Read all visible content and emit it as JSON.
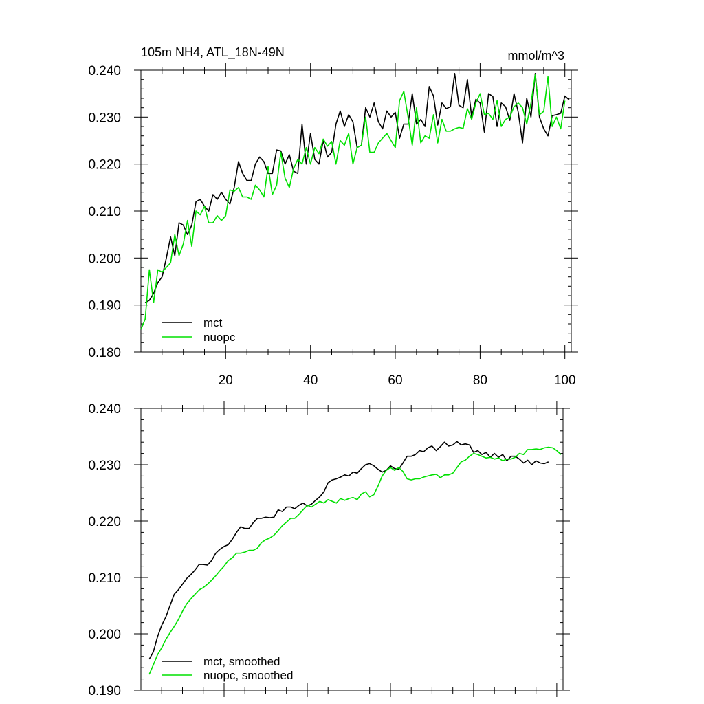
{
  "colors": {
    "mct": "#000000",
    "nuopc": "#00e000"
  },
  "chart_data": [
    {
      "type": "line",
      "title": "105m NH4, ATL_18N-49N",
      "units": "mmol/m^3",
      "xlim": [
        0,
        101.5
      ],
      "ylim": [
        0.18,
        0.24
      ],
      "xticks": [
        20,
        40,
        60,
        80,
        100
      ],
      "xtick_labels": [
        "20",
        "40",
        "60",
        "80",
        "100"
      ],
      "yticks": [
        0.18,
        0.19,
        0.2,
        0.21,
        0.22,
        0.23,
        0.24
      ],
      "ytick_labels": [
        "0.180",
        "0.190",
        "0.200",
        "0.210",
        "0.220",
        "0.230",
        "0.240"
      ],
      "legend": [
        "mct",
        "nuopc"
      ],
      "legend_position": "bottom-left",
      "series": [
        {
          "name": "mct",
          "x_start": 1,
          "values": [
            0.1905,
            0.191,
            0.1925,
            0.1948,
            0.196,
            0.2,
            0.2045,
            0.2005,
            0.2075,
            0.207,
            0.205,
            0.207,
            0.212,
            0.2125,
            0.211,
            0.21,
            0.2135,
            0.2125,
            0.214,
            0.2125,
            0.2115,
            0.215,
            0.2205,
            0.218,
            0.2165,
            0.2165,
            0.22,
            0.2215,
            0.2205,
            0.218,
            0.218,
            0.223,
            0.2228,
            0.22,
            0.222,
            0.2185,
            0.218,
            0.2285,
            0.22,
            0.2265,
            0.221,
            0.22,
            0.225,
            0.2215,
            0.2225,
            0.2285,
            0.2313,
            0.228,
            0.2305,
            0.229,
            0.2235,
            0.224,
            0.232,
            0.23,
            0.233,
            0.229,
            0.2275,
            0.2313,
            0.23,
            0.231,
            0.2255,
            0.2285,
            0.2285,
            0.235,
            0.2285,
            0.2295,
            0.228,
            0.2365,
            0.2345,
            0.2283,
            0.233,
            0.2318,
            0.2322,
            0.2393,
            0.2325,
            0.232,
            0.238,
            0.23,
            0.2338,
            0.233,
            0.2268,
            0.235,
            0.2344,
            0.228,
            0.233,
            0.2322,
            0.2293,
            0.235,
            0.231,
            0.2245,
            0.234,
            0.23,
            0.2393,
            0.23,
            0.2275,
            0.226,
            0.2303,
            0.2305,
            0.2308,
            0.2345,
            0.2337
          ]
        },
        {
          "name": "nuopc",
          "x_start": 0,
          "values": [
            0.1848,
            0.187,
            0.1975,
            0.1905,
            0.1975,
            0.197,
            0.198,
            0.199,
            0.205,
            0.2005,
            0.203,
            0.208,
            0.2025,
            0.21,
            0.2092,
            0.211,
            0.2075,
            0.2075,
            0.209,
            0.208,
            0.209,
            0.2145,
            0.2142,
            0.215,
            0.213,
            0.213,
            0.2125,
            0.2155,
            0.2145,
            0.213,
            0.2195,
            0.2135,
            0.2155,
            0.2225,
            0.217,
            0.215,
            0.219,
            0.221,
            0.22,
            0.2235,
            0.22,
            0.2235,
            0.2222,
            0.2253,
            0.2238,
            0.2248,
            0.22,
            0.225,
            0.224,
            0.2265,
            0.22,
            0.2235,
            0.224,
            0.23,
            0.2225,
            0.2225,
            0.2245,
            0.2255,
            0.2265,
            0.225,
            0.2235,
            0.2335,
            0.2355,
            0.23,
            0.224,
            0.232,
            0.2245,
            0.226,
            0.2255,
            0.2305,
            0.2245,
            0.2295,
            0.227,
            0.227,
            0.2275,
            0.2278,
            0.2276,
            0.2318,
            0.2295,
            0.233,
            0.235,
            0.2305,
            0.2308,
            0.2295,
            0.2335,
            0.228,
            0.2295,
            0.23,
            0.2322,
            0.233,
            0.232,
            0.2285,
            0.233,
            0.239,
            0.2305,
            0.2312,
            0.2386,
            0.228,
            0.23,
            0.2275,
            0.2335
          ]
        }
      ]
    },
    {
      "type": "line",
      "title": "",
      "xlim": [
        0,
        101.5
      ],
      "ylim": [
        0.19,
        0.24
      ],
      "xticks": [
        20,
        40,
        60,
        80,
        100
      ],
      "xtick_labels": [],
      "yticks": [
        0.19,
        0.2,
        0.21,
        0.22,
        0.23,
        0.24
      ],
      "ytick_labels": [
        "0.190",
        "0.200",
        "0.210",
        "0.220",
        "0.230",
        "0.240"
      ],
      "legend": [
        "mct, smoothed",
        "nuopc, smoothed"
      ],
      "legend_position": "bottom-left",
      "series": [
        {
          "name": "mct, smoothed",
          "x_start": 2,
          "values": [
            0.1955,
            0.1968,
            0.1995,
            0.2015,
            0.203,
            0.205,
            0.207,
            0.2078,
            0.2088,
            0.2098,
            0.2105,
            0.2113,
            0.2123,
            0.2123,
            0.2122,
            0.213,
            0.2143,
            0.215,
            0.2155,
            0.2158,
            0.2168,
            0.218,
            0.219,
            0.2187,
            0.2187,
            0.2197,
            0.2205,
            0.2205,
            0.2207,
            0.2206,
            0.2207,
            0.222,
            0.2217,
            0.2225,
            0.2225,
            0.2222,
            0.2228,
            0.2232,
            0.2227,
            0.223,
            0.2237,
            0.2243,
            0.2252,
            0.2268,
            0.2273,
            0.2275,
            0.2278,
            0.2282,
            0.228,
            0.2287,
            0.2285,
            0.2293,
            0.23,
            0.2302,
            0.2298,
            0.2292,
            0.2287,
            0.229,
            0.2298,
            0.2293,
            0.2292,
            0.2303,
            0.2315,
            0.2315,
            0.2318,
            0.2325,
            0.2323,
            0.233,
            0.2333,
            0.2325,
            0.2332,
            0.234,
            0.2333,
            0.2335,
            0.2341,
            0.2335,
            0.2337,
            0.2335,
            0.2322,
            0.2325,
            0.2318,
            0.2322,
            0.2313,
            0.232,
            0.2313,
            0.2318,
            0.2307,
            0.2315,
            0.2315,
            0.231,
            0.2303,
            0.2308,
            0.23,
            0.2307,
            0.2303,
            0.2302,
            0.2305
          ]
        },
        {
          "name": "nuopc, smoothed",
          "x_start": 2,
          "values": [
            0.1928,
            0.1945,
            0.1963,
            0.1975,
            0.199,
            0.2002,
            0.2013,
            0.2025,
            0.204,
            0.2053,
            0.2062,
            0.207,
            0.2078,
            0.2082,
            0.2088,
            0.2095,
            0.2103,
            0.2112,
            0.212,
            0.213,
            0.2135,
            0.2143,
            0.2143,
            0.2145,
            0.2148,
            0.2148,
            0.2152,
            0.2162,
            0.2167,
            0.217,
            0.2175,
            0.2183,
            0.2192,
            0.2198,
            0.2205,
            0.2205,
            0.2212,
            0.222,
            0.2228,
            0.2225,
            0.223,
            0.2235,
            0.2232,
            0.2238,
            0.2235,
            0.2232,
            0.224,
            0.2237,
            0.224,
            0.2242,
            0.2238,
            0.2248,
            0.2252,
            0.2243,
            0.2247,
            0.2262,
            0.228,
            0.229,
            0.2295,
            0.229,
            0.2295,
            0.2288,
            0.2275,
            0.2273,
            0.2275,
            0.2275,
            0.2278,
            0.228,
            0.2282,
            0.2283,
            0.2277,
            0.2282,
            0.2282,
            0.2285,
            0.2295,
            0.2305,
            0.2308,
            0.2315,
            0.232,
            0.2318,
            0.2315,
            0.2312,
            0.2313,
            0.231,
            0.2312,
            0.2307,
            0.231,
            0.231,
            0.2313,
            0.232,
            0.2318,
            0.2327,
            0.2327,
            0.2328,
            0.2327,
            0.233,
            0.2331,
            0.233,
            0.2325,
            0.2318
          ]
        }
      ]
    }
  ]
}
